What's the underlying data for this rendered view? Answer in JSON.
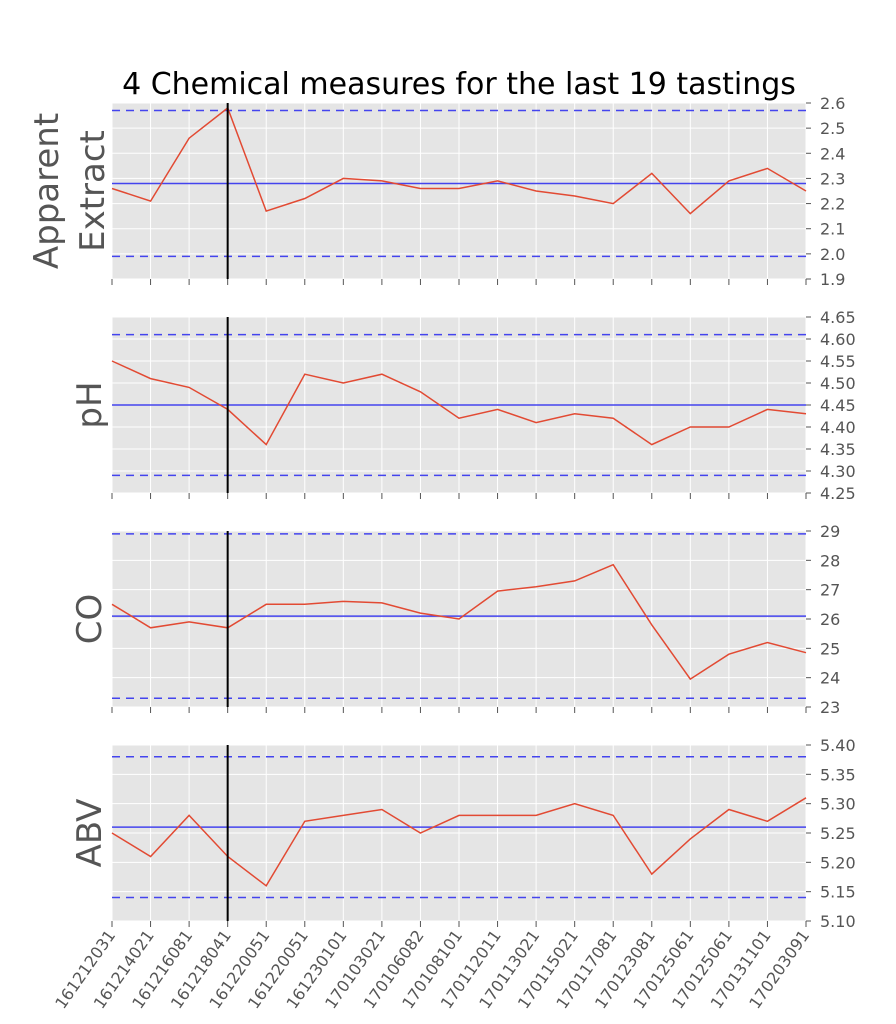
{
  "chart_data": {
    "type": "line",
    "title": "4 Chemical measures for the last 19 tastings",
    "x_tick_labels": [
      "161212031",
      "161214021",
      "161216081",
      "161218041",
      "161220051",
      "161220051",
      "161230101",
      "170103021",
      "170106082",
      "170108101",
      "170112011",
      "170113021",
      "170115021",
      "170117081",
      "170123081",
      "170125061",
      "170125061",
      "170131101",
      "170203091"
    ],
    "marker_index": 3,
    "colors": {
      "series": "#e24a33",
      "reference": "#4444ee",
      "marker": "#000000",
      "background": "#e5e5e5"
    },
    "panels": [
      {
        "ylabel_lines": [
          "Apparent",
          "Extract"
        ],
        "ylim": [
          1.9,
          2.6
        ],
        "yticks": [
          1.9,
          2.0,
          2.1,
          2.2,
          2.3,
          2.4,
          2.5,
          2.6
        ],
        "ytick_labels": [
          "1.9",
          "2.0",
          "2.1",
          "2.2",
          "2.3",
          "2.4",
          "2.5",
          "2.6"
        ],
        "values": [
          2.26,
          2.21,
          2.46,
          2.58,
          2.17,
          2.22,
          2.3,
          2.29,
          2.26,
          2.26,
          2.29,
          2.25,
          2.23,
          2.2,
          2.32,
          2.16,
          2.29,
          2.34,
          2.25
        ],
        "mean": 2.28,
        "lower_limit": 1.99,
        "upper_limit": 2.57
      },
      {
        "ylabel_lines": [
          "pH"
        ],
        "ylim": [
          4.25,
          4.65
        ],
        "yticks": [
          4.25,
          4.3,
          4.35,
          4.4,
          4.45,
          4.5,
          4.55,
          4.6,
          4.65
        ],
        "ytick_labels": [
          "4.25",
          "4.30",
          "4.35",
          "4.40",
          "4.45",
          "4.50",
          "4.55",
          "4.60",
          "4.65"
        ],
        "values": [
          4.55,
          4.51,
          4.49,
          4.44,
          4.36,
          4.52,
          4.5,
          4.52,
          4.48,
          4.42,
          4.44,
          4.41,
          4.43,
          4.42,
          4.36,
          4.4,
          4.4,
          4.44,
          4.43
        ],
        "mean": 4.45,
        "lower_limit": 4.29,
        "upper_limit": 4.61
      },
      {
        "ylabel_lines": [
          "CO"
        ],
        "ylim": [
          23,
          29
        ],
        "yticks": [
          23,
          24,
          25,
          26,
          27,
          28,
          29
        ],
        "ytick_labels": [
          "23",
          "24",
          "25",
          "26",
          "27",
          "28",
          "29"
        ],
        "values": [
          26.5,
          25.7,
          25.9,
          25.7,
          26.5,
          26.5,
          26.6,
          26.55,
          26.2,
          26.0,
          26.95,
          27.1,
          27.3,
          27.85,
          25.8,
          23.95,
          24.8,
          25.2,
          24.85
        ],
        "mean": 26.1,
        "lower_limit": 23.3,
        "upper_limit": 28.9
      },
      {
        "ylabel_lines": [
          "ABV"
        ],
        "ylim": [
          5.1,
          5.4
        ],
        "yticks": [
          5.1,
          5.15,
          5.2,
          5.25,
          5.3,
          5.35,
          5.4
        ],
        "ytick_labels": [
          "5.10",
          "5.15",
          "5.20",
          "5.25",
          "5.30",
          "5.35",
          "5.40"
        ],
        "values": [
          5.25,
          5.21,
          5.28,
          5.21,
          5.16,
          5.27,
          5.28,
          5.29,
          5.25,
          5.28,
          5.28,
          5.28,
          5.3,
          5.28,
          5.18,
          5.24,
          5.29,
          5.27,
          5.31
        ],
        "mean": 5.26,
        "lower_limit": 5.14,
        "upper_limit": 5.38
      }
    ]
  }
}
